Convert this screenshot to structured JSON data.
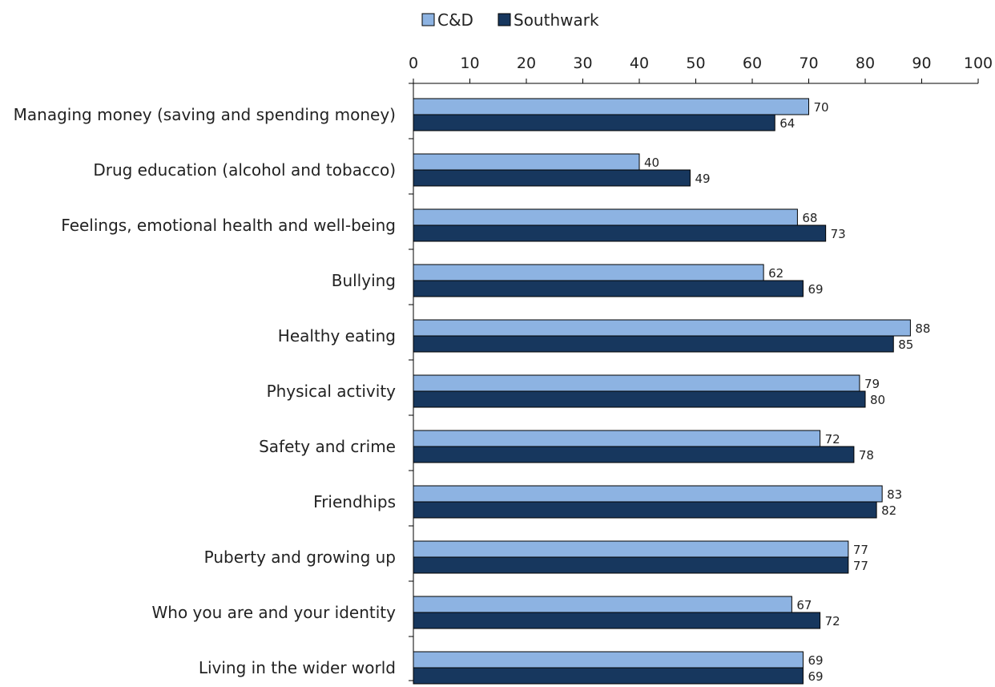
{
  "chart_data": {
    "type": "bar",
    "orientation": "horizontal",
    "categories": [
      "Managing money (saving and spending money)",
      "Drug education (alcohol and tobacco)",
      "Feelings, emotional health and well-being",
      "Bullying",
      "Healthy eating",
      "Physical activity",
      "Safety and crime",
      "Friendhips",
      "Puberty and growing up",
      "Who you are and your identity",
      "Living in the wider world"
    ],
    "series": [
      {
        "name": "C&D",
        "color": "#8db3e2",
        "values": [
          70,
          40,
          68,
          62,
          88,
          79,
          72,
          83,
          77,
          67,
          69
        ]
      },
      {
        "name": "Southwark",
        "color": "#17375e",
        "values": [
          64,
          49,
          73,
          69,
          85,
          80,
          78,
          82,
          77,
          72,
          69
        ]
      }
    ],
    "xlim": [
      0,
      100
    ],
    "xticks": [
      0,
      10,
      20,
      30,
      40,
      50,
      60,
      70,
      80,
      90,
      100
    ],
    "x_axis_position": "top",
    "legend_position": "top",
    "grid": false,
    "data_labels": true
  }
}
